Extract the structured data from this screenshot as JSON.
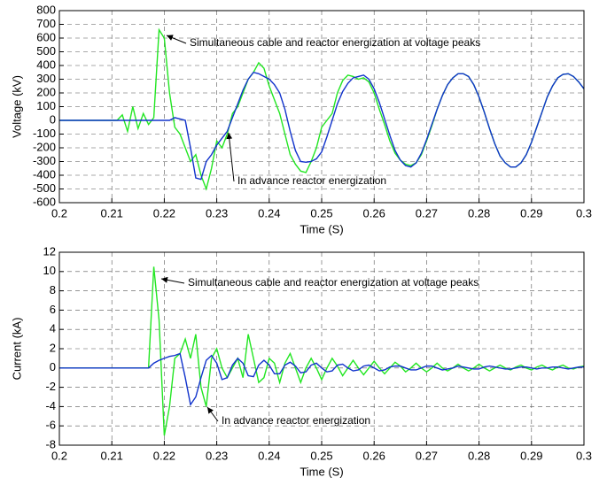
{
  "chart_data": [
    {
      "type": "line",
      "xlabel": "Time (S)",
      "ylabel": "Voltage (kV)",
      "x": [
        0.2,
        0.201,
        0.202,
        0.203,
        0.204,
        0.205,
        0.206,
        0.207,
        0.208,
        0.209,
        0.21,
        0.211,
        0.212,
        0.213,
        0.214,
        0.215,
        0.216,
        0.217,
        0.218,
        0.219,
        0.22,
        0.221,
        0.222,
        0.223,
        0.224,
        0.225,
        0.226,
        0.227,
        0.228,
        0.229,
        0.23,
        0.231,
        0.232,
        0.233,
        0.234,
        0.235,
        0.236,
        0.237,
        0.238,
        0.239,
        0.24,
        0.241,
        0.242,
        0.243,
        0.244,
        0.245,
        0.246,
        0.247,
        0.248,
        0.249,
        0.25,
        0.251,
        0.252,
        0.253,
        0.254,
        0.255,
        0.256,
        0.257,
        0.258,
        0.259,
        0.26,
        0.261,
        0.262,
        0.263,
        0.264,
        0.265,
        0.266,
        0.267,
        0.268,
        0.269,
        0.27,
        0.271,
        0.272,
        0.273,
        0.274,
        0.275,
        0.276,
        0.277,
        0.278,
        0.279,
        0.28,
        0.281,
        0.282,
        0.283,
        0.284,
        0.285,
        0.286,
        0.287,
        0.288,
        0.289,
        0.29,
        0.291,
        0.292,
        0.293,
        0.294,
        0.295,
        0.296,
        0.297,
        0.298,
        0.299,
        0.3
      ],
      "series": [
        {
          "color": "#22e622",
          "values": [
            0,
            0,
            0,
            0,
            0,
            0,
            0,
            0,
            0,
            0,
            0,
            0,
            40,
            -80,
            100,
            -60,
            50,
            -30,
            20,
            660,
            600,
            200,
            -50,
            -100,
            -200,
            -300,
            -250,
            -400,
            -500,
            -350,
            -150,
            -200,
            -100,
            50,
            100,
            200,
            300,
            350,
            420,
            380,
            250,
            150,
            50,
            -100,
            -250,
            -320,
            -370,
            -380,
            -300,
            -200,
            -50,
            0,
            50,
            200,
            290,
            330,
            320,
            300,
            310,
            280,
            200,
            80,
            -30,
            -150,
            -240,
            -290,
            -320,
            -330,
            -310,
            -250,
            -150,
            -40,
            80,
            180,
            260,
            310,
            340,
            340,
            320,
            260,
            170,
            60,
            -60,
            -170,
            -260,
            -310,
            -340,
            -340,
            -310,
            -250,
            -160,
            -50,
            60,
            170,
            250,
            310,
            335,
            340,
            320,
            280,
            230
          ]
        },
        {
          "color": "#1133cc",
          "values": [
            0,
            0,
            0,
            0,
            0,
            0,
            0,
            0,
            0,
            0,
            0,
            0,
            0,
            0,
            0,
            0,
            0,
            0,
            0,
            0,
            0,
            0,
            20,
            10,
            0,
            -200,
            -420,
            -430,
            -300,
            -250,
            -180,
            -130,
            -80,
            20,
            120,
            220,
            300,
            350,
            340,
            320,
            300,
            260,
            200,
            80,
            -80,
            -220,
            -300,
            -305,
            -300,
            -280,
            -230,
            -120,
            0,
            120,
            210,
            270,
            310,
            320,
            330,
            300,
            230,
            130,
            10,
            -110,
            -220,
            -290,
            -330,
            -340,
            -310,
            -240,
            -140,
            -30,
            80,
            180,
            260,
            310,
            340,
            340,
            320,
            260,
            170,
            60,
            -60,
            -170,
            -260,
            -310,
            -340,
            -340,
            -310,
            -250,
            -160,
            -50,
            60,
            170,
            250,
            310,
            335,
            340,
            320,
            280,
            230
          ]
        }
      ],
      "xlim": [
        0.2,
        0.3
      ],
      "xticks": [
        0.2,
        0.21,
        0.22,
        0.23,
        0.24,
        0.25,
        0.26,
        0.27,
        0.28,
        0.29,
        0.3
      ],
      "ylim": [
        -600,
        800
      ],
      "yticks": [
        -600,
        -500,
        -400,
        -300,
        -200,
        -100,
        0,
        100,
        200,
        300,
        400,
        500,
        600,
        700,
        800
      ],
      "grid": true,
      "annotations": [
        {
          "text": "Simultaneous cable and reactor energization at voltage peaks"
        },
        {
          "text": "In advance reactor energization"
        }
      ]
    },
    {
      "type": "line",
      "xlabel": "Time (S)",
      "ylabel": "Current (kA)",
      "x": [
        0.2,
        0.201,
        0.202,
        0.203,
        0.204,
        0.205,
        0.206,
        0.207,
        0.208,
        0.209,
        0.21,
        0.211,
        0.212,
        0.213,
        0.214,
        0.215,
        0.216,
        0.217,
        0.218,
        0.219,
        0.22,
        0.221,
        0.222,
        0.223,
        0.224,
        0.225,
        0.226,
        0.227,
        0.228,
        0.229,
        0.23,
        0.231,
        0.232,
        0.233,
        0.234,
        0.235,
        0.236,
        0.237,
        0.238,
        0.239,
        0.24,
        0.241,
        0.242,
        0.243,
        0.244,
        0.245,
        0.246,
        0.247,
        0.248,
        0.249,
        0.25,
        0.251,
        0.252,
        0.253,
        0.254,
        0.255,
        0.256,
        0.257,
        0.258,
        0.259,
        0.26,
        0.261,
        0.262,
        0.263,
        0.264,
        0.265,
        0.266,
        0.267,
        0.268,
        0.269,
        0.27,
        0.271,
        0.272,
        0.273,
        0.274,
        0.275,
        0.276,
        0.277,
        0.278,
        0.279,
        0.28,
        0.281,
        0.282,
        0.283,
        0.284,
        0.285,
        0.286,
        0.287,
        0.288,
        0.289,
        0.29,
        0.291,
        0.292,
        0.293,
        0.294,
        0.295,
        0.296,
        0.297,
        0.298,
        0.299,
        0.3
      ],
      "series": [
        {
          "color": "#22e622",
          "values": [
            0,
            0,
            0,
            0,
            0,
            0,
            0,
            0,
            0,
            0,
            0,
            0,
            0,
            0,
            0,
            0,
            0,
            0,
            10.5,
            5,
            -7,
            -4,
            1,
            1.5,
            3,
            1,
            3.5,
            -2,
            -4,
            1,
            2,
            0,
            -1,
            0,
            1,
            -1,
            3.5,
            1,
            -1.5,
            -1,
            1,
            0.5,
            -1.5,
            0.5,
            1.5,
            0,
            -1.5,
            0,
            1,
            0,
            -1.2,
            0,
            1,
            0.2,
            -0.8,
            0,
            0.8,
            0,
            -0.7,
            0,
            0.7,
            0,
            -0.6,
            0,
            0.6,
            0.2,
            -0.4,
            0,
            0.5,
            0,
            -0.4,
            0,
            0.5,
            0,
            -0.3,
            0,
            0.4,
            0,
            -0.3,
            0,
            0.4,
            0,
            -0.3,
            0,
            0.3,
            0,
            -0.2,
            0.1,
            0.3,
            0,
            -0.2,
            0.1,
            0.3,
            0,
            -0.2,
            0.1,
            0.3,
            0,
            -0.1,
            0.1,
            0.2
          ]
        },
        {
          "color": "#1133cc",
          "values": [
            0,
            0,
            0,
            0,
            0,
            0,
            0,
            0,
            0,
            0,
            0,
            0,
            0,
            0,
            0,
            0,
            0,
            0,
            0.5,
            0.8,
            1,
            1.2,
            1.3,
            1.5,
            -1,
            -3.8,
            -3,
            -1,
            0.8,
            1.3,
            0.5,
            -1.2,
            -1,
            0.3,
            1,
            0.5,
            -0.8,
            -0.9,
            0.3,
            0.8,
            0.3,
            -0.6,
            -0.6,
            0.3,
            0.6,
            0.2,
            -0.5,
            -0.4,
            0.3,
            0.5,
            0,
            -0.4,
            -0.3,
            0.3,
            0.4,
            0,
            -0.3,
            -0.2,
            0.2,
            0.3,
            0,
            -0.3,
            -0.2,
            0.1,
            0.2,
            0.2,
            0,
            -0.2,
            -0.2,
            0,
            0.2,
            0.2,
            0,
            -0.2,
            -0.1,
            0,
            0.2,
            0.1,
            0,
            -0.1,
            -0.1,
            0.1,
            0.2,
            0.1,
            0,
            -0.1,
            -0.1,
            0,
            0.1,
            0.1,
            0,
            -0.1,
            0,
            0,
            0.1,
            0.1,
            0,
            -0.1,
            0,
            0.1,
            0.1
          ]
        }
      ],
      "xlim": [
        0.2,
        0.3
      ],
      "xticks": [
        0.2,
        0.21,
        0.22,
        0.23,
        0.24,
        0.25,
        0.26,
        0.27,
        0.28,
        0.29,
        0.3
      ],
      "ylim": [
        -8,
        12
      ],
      "yticks": [
        -8,
        -6,
        -4,
        -2,
        0,
        2,
        4,
        6,
        8,
        10,
        12
      ],
      "grid": true,
      "annotations": [
        {
          "text": "Simultaneous cable and reactor energization at voltage peaks"
        },
        {
          "text": "In advance reactor energization"
        }
      ]
    }
  ]
}
